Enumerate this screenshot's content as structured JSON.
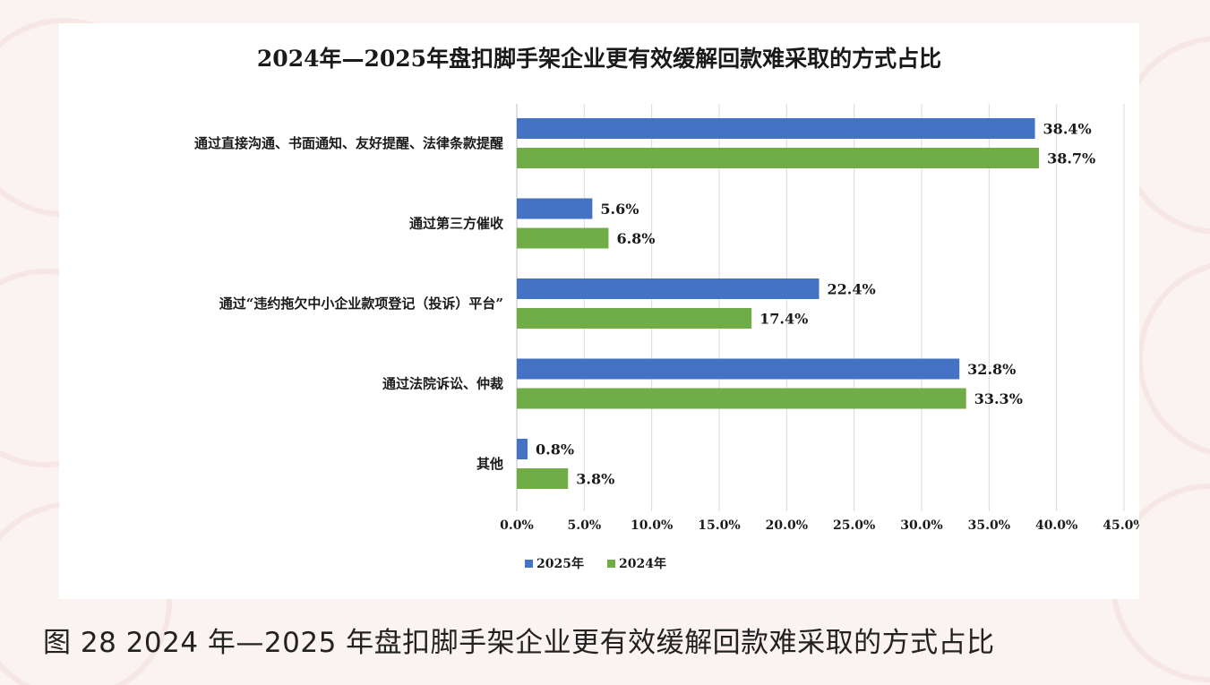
{
  "caption": "图 28 2024 年—2025 年盘扣脚手架企业更有效缓解回款难采取的方式占比",
  "colors": {
    "series_2025": "#4472c4",
    "series_2024": "#70ad47",
    "grid": "#d9d9d9",
    "text": "#1a1a1a"
  },
  "chart_data": {
    "type": "bar",
    "orientation": "horizontal",
    "title": "2024年—2025年盘扣脚手架企业更有效缓解回款难采取的方式占比",
    "categories": [
      "通过直接沟通、书面通知、友好提醒、法律条款提醒",
      "通过第三方催收",
      "通过“违约拖欠中小企业款项登记（投诉）平台”",
      "通过法院诉讼、仲裁",
      "其他"
    ],
    "series": [
      {
        "name": "2025年",
        "values": [
          38.4,
          5.6,
          22.4,
          32.8,
          0.8
        ]
      },
      {
        "name": "2024年",
        "values": [
          38.7,
          6.8,
          17.4,
          33.3,
          3.8
        ]
      }
    ],
    "value_labels": {
      "2025年": [
        "38.4%",
        "5.6%",
        "22.4%",
        "32.8%",
        "0.8%"
      ],
      "2024年": [
        "38.7%",
        "6.8%",
        "17.4%",
        "33.3%",
        "3.8%"
      ]
    },
    "xlim": [
      0,
      45
    ],
    "xticks": [
      "0.0%",
      "5.0%",
      "10.0%",
      "15.0%",
      "20.0%",
      "25.0%",
      "30.0%",
      "35.0%",
      "40.0%",
      "45.0%"
    ],
    "xlabel": "",
    "ylabel": "",
    "grid": "vertical",
    "legend": "bottom-center"
  }
}
